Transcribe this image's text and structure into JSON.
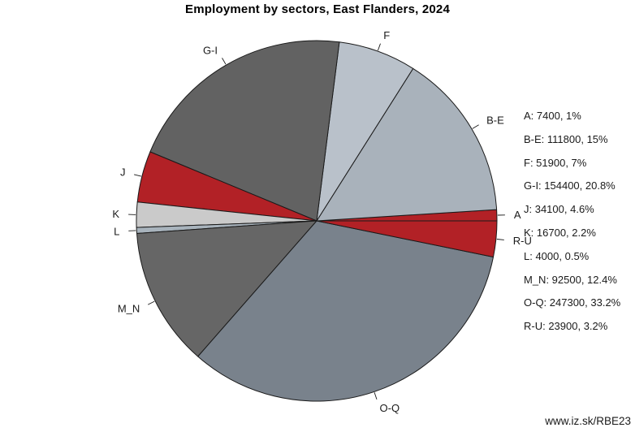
{
  "title": "Employment by sectors, East Flanders, 2024",
  "watermark": "www.iz.sk/RBE23",
  "chart_data": {
    "type": "pie",
    "title": "Employment by sectors, East Flanders, 2024",
    "categories": [
      "A",
      "B-E",
      "F",
      "G-I",
      "J",
      "K",
      "L",
      "M_N",
      "O-Q",
      "R-U"
    ],
    "values": [
      7400,
      111800,
      51900,
      154400,
      34100,
      16700,
      4000,
      92500,
      247300,
      23900
    ],
    "percent_labels": [
      "1%",
      "15%",
      "7%",
      "20.8%",
      "4.6%",
      "2.2%",
      "0.5%",
      "12.4%",
      "33.2%",
      "3.2%"
    ],
    "colors": [
      "#b22126",
      "#a9b2bb",
      "#b9c1ca",
      "#626262",
      "#b22126",
      "#cacaca",
      "#a8b3bc",
      "#666666",
      "#79828c",
      "#b22126"
    ],
    "start_angle_deg": 0,
    "direction": "counterclockwise",
    "slice_border_color": "#1a1a1a",
    "legend_position": "right",
    "legend_format": "{category}: {value}, {percent}"
  }
}
